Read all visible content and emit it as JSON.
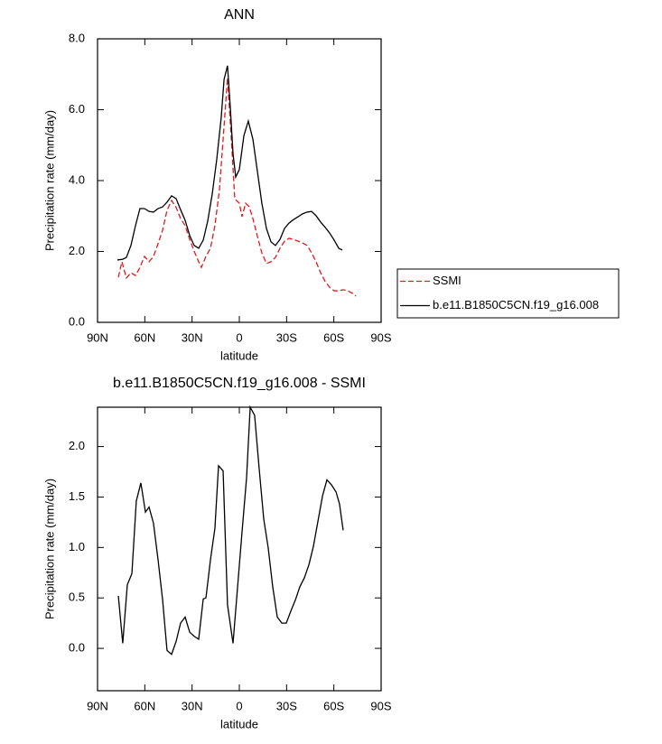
{
  "chart_data": [
    {
      "type": "line",
      "title": "ANN",
      "xlabel": "latitude",
      "ylabel": "Precipitation rate (mm/day)",
      "xlim": [
        90,
        -90
      ],
      "xticks": [
        {
          "value": 90,
          "label": "90N"
        },
        {
          "value": 60,
          "label": "60N"
        },
        {
          "value": 30,
          "label": "30N"
        },
        0,
        {
          "value": -30,
          "label": "30S"
        },
        {
          "value": -60,
          "label": "60S"
        },
        {
          "value": -90,
          "label": "90S"
        }
      ],
      "ylim": [
        0,
        8
      ],
      "yticks": [
        {
          "value": 0,
          "label": "0.0"
        },
        {
          "value": 2,
          "label": "2.0"
        },
        {
          "value": 4,
          "label": "4.0"
        },
        {
          "value": 6,
          "label": "6.0"
        },
        {
          "value": 8,
          "label": "8.0"
        }
      ],
      "legend": "right",
      "series": [
        {
          "name": "SSMI",
          "color": "#e31a1c",
          "dashed": true,
          "x": [
            76.8,
            74.5,
            71.7,
            68.8,
            65.9,
            63.1,
            60.2,
            57.3,
            54.5,
            51.6,
            48.7,
            45.9,
            43.0,
            40.1,
            37.3,
            34.4,
            31.5,
            28.7,
            25.8,
            24.1,
            21.2,
            18.3,
            15.5,
            12.6,
            9.7,
            7.5,
            5.2,
            2.9,
            0,
            -1.7,
            -4.0,
            -6.3,
            -8.6,
            -11.5,
            -14.3,
            -17.2,
            -20.1,
            -22.9,
            -25.8,
            -28.7,
            -31.5,
            -34.4,
            -37.3,
            -40.1,
            -43.0,
            -45.9,
            -48.7,
            -51.6,
            -54.5,
            -57.3,
            -60.2,
            -63.1,
            -65.9,
            -68.8,
            -71.7,
            -74.0
          ],
          "values": [
            1.27,
            1.71,
            1.25,
            1.4,
            1.32,
            1.55,
            1.86,
            1.71,
            1.86,
            2.22,
            2.6,
            3.16,
            3.44,
            3.24,
            2.93,
            2.73,
            2.34,
            2.01,
            1.71,
            1.55,
            1.86,
            2.09,
            2.73,
            3.75,
            5.53,
            6.9,
            5.27,
            3.49,
            3.36,
            2.98,
            3.36,
            3.26,
            2.93,
            2.42,
            1.96,
            1.66,
            1.71,
            1.83,
            2.09,
            2.29,
            2.37,
            2.34,
            2.29,
            2.24,
            2.17,
            1.96,
            1.71,
            1.4,
            1.15,
            0.99,
            0.89,
            0.89,
            0.92,
            0.89,
            0.82,
            0.74
          ]
        },
        {
          "name": "b.e11.B1850C5CN.f19_g16.008",
          "color": "#000000",
          "dashed": false,
          "x": [
            77.4,
            74.0,
            71.7,
            68.8,
            65.9,
            63.1,
            60.2,
            57.3,
            54.5,
            51.6,
            48.7,
            45.9,
            43.0,
            40.1,
            37.3,
            34.4,
            31.5,
            28.7,
            25.8,
            22.9,
            20.1,
            17.2,
            14.3,
            11.5,
            9.7,
            7.5,
            5.7,
            4.0,
            2.3,
            0,
            -2.9,
            -5.7,
            -8.6,
            -11.5,
            -14.3,
            -17.2,
            -20.1,
            -22.9,
            -25.8,
            -28.7,
            -31.5,
            -34.4,
            -37.3,
            -40.1,
            -43.0,
            -45.9,
            -48.7,
            -51.6,
            -54.5,
            -57.3,
            -60.2,
            -63.1,
            -65.4
          ],
          "values": [
            1.76,
            1.78,
            1.83,
            2.17,
            2.73,
            3.21,
            3.21,
            3.13,
            3.11,
            3.21,
            3.26,
            3.39,
            3.57,
            3.49,
            3.18,
            2.88,
            2.45,
            2.17,
            2.09,
            2.32,
            2.85,
            3.62,
            4.61,
            5.78,
            6.85,
            7.24,
            6.04,
            4.76,
            4.1,
            4.31,
            5.27,
            5.68,
            5.17,
            4.25,
            3.36,
            2.65,
            2.27,
            2.17,
            2.34,
            2.65,
            2.8,
            2.9,
            2.98,
            3.06,
            3.11,
            3.13,
            3.01,
            2.83,
            2.68,
            2.52,
            2.32,
            2.09,
            2.04
          ]
        }
      ]
    },
    {
      "type": "line",
      "title": "b.e11.B1850C5CN.f19_g16.008 - SSMI",
      "xlabel": "latitude",
      "ylabel": "Precipitation rate (mm/day)",
      "xlim": [
        90,
        -90
      ],
      "xticks": [
        {
          "value": 90,
          "label": "90N"
        },
        {
          "value": 60,
          "label": "60N"
        },
        {
          "value": 30,
          "label": "30N"
        },
        0,
        {
          "value": -30,
          "label": "30S"
        },
        {
          "value": -60,
          "label": "60S"
        },
        {
          "value": -90,
          "label": "90S"
        }
      ],
      "ylim": [
        -0.42,
        2.39
      ],
      "yticks": [
        {
          "value": 0,
          "label": "0.0"
        },
        {
          "value": 0.5,
          "label": "0.5"
        },
        {
          "value": 1,
          "label": "1.0"
        },
        {
          "value": 1.5,
          "label": "1.5"
        },
        {
          "value": 2,
          "label": "2.0"
        }
      ],
      "series": [
        {
          "color": "#000000",
          "dashed": false,
          "x": [
            76.8,
            74.0,
            71.1,
            68.2,
            65.4,
            62.5,
            59.6,
            57.3,
            54.5,
            51.6,
            48.7,
            45.9,
            43.0,
            40.1,
            37.3,
            34.4,
            31.5,
            28.7,
            25.8,
            22.9,
            21.2,
            18.3,
            15.5,
            13.2,
            10.3,
            7.5,
            4.0,
            1.1,
            -1.7,
            -4.6,
            -6.9,
            -9.7,
            -12.6,
            -15.5,
            -18.3,
            -21.2,
            -24.1,
            -27.0,
            -29.8,
            -32.7,
            -35.6,
            -38.4,
            -41.3,
            -44.2,
            -47.0,
            -49.9,
            -52.8,
            -55.6,
            -58.5,
            -61.4,
            -63.6,
            -65.9
          ],
          "values": [
            0.52,
            0.05,
            0.63,
            0.74,
            1.46,
            1.64,
            1.35,
            1.4,
            1.24,
            0.88,
            0.48,
            -0.02,
            -0.06,
            0.07,
            0.25,
            0.31,
            0.16,
            0.12,
            0.09,
            0.49,
            0.5,
            0.88,
            1.19,
            1.81,
            1.76,
            0.43,
            0.05,
            0.61,
            1.15,
            1.69,
            2.39,
            2.31,
            1.78,
            1.28,
            1.0,
            0.61,
            0.31,
            0.25,
            0.25,
            0.37,
            0.48,
            0.61,
            0.7,
            0.83,
            1.01,
            1.26,
            1.51,
            1.67,
            1.62,
            1.55,
            1.43,
            1.17
          ]
        }
      ]
    }
  ]
}
